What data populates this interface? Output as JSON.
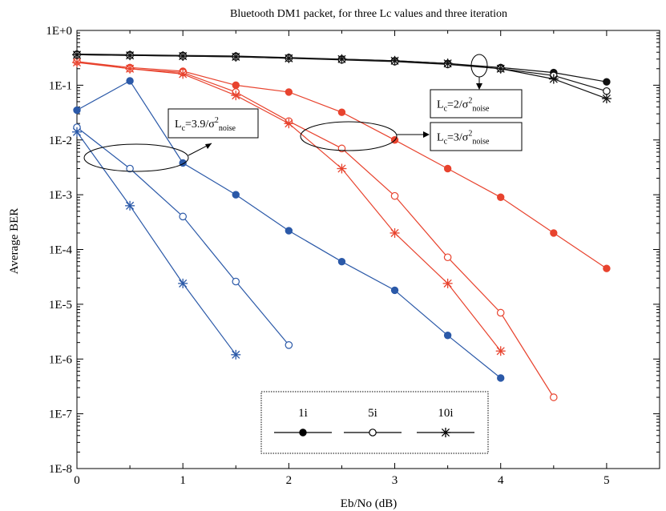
{
  "chart_data": {
    "type": "line",
    "title": "Bluetooth DM1 packet, for three Lc values and three iteration",
    "xlabel": "Eb/No (dB)",
    "ylabel": "Average BER",
    "xlim": [
      0,
      5.5
    ],
    "ylim": [
      1e-08,
      1
    ],
    "yscale": "log",
    "grid": false,
    "x_ticks": [
      "0",
      "1",
      "2",
      "3",
      "4",
      "5"
    ],
    "y_ticks": [
      "1E+0",
      "1E-1",
      "1E-2",
      "1E-3",
      "1E-4",
      "1E-5",
      "1E-6",
      "1E-7",
      "1E-8"
    ],
    "legend": {
      "placement": "bottom-center",
      "entries": [
        {
          "label": "1i",
          "marker": "filled-circle"
        },
        {
          "label": "5i",
          "marker": "open-circle"
        },
        {
          "label": "10i",
          "marker": "asterisk"
        }
      ]
    },
    "annotations": [
      {
        "text": "Lc=3.9/σ²noise",
        "main": "L",
        "sub1": "c",
        "mid": "=3.9/σ",
        "sup": "2",
        "sub2": "noise",
        "group": "blue"
      },
      {
        "text": "Lc=3/σ²noise",
        "main": "L",
        "sub1": "c",
        "mid": "=3/σ",
        "sup": "2",
        "sub2": "noise",
        "group": "red"
      },
      {
        "text": "Lc=2/σ²noise",
        "main": "L",
        "sub1": "c",
        "mid": "=2/σ",
        "sup": "2",
        "sub2": "noise",
        "group": "black"
      }
    ],
    "colors": {
      "blue": "#2b59a8",
      "red": "#e8432e",
      "black": "#111111"
    },
    "series": [
      {
        "group": "blue",
        "marker": "filled-circle",
        "x": [
          0,
          0.5,
          1,
          1.5,
          2,
          2.5,
          3,
          3.5,
          4
        ],
        "y": [
          0.035,
          0.12,
          0.0038,
          0.001,
          0.00022,
          6e-05,
          1.8e-05,
          2.7e-06,
          4.5e-07
        ]
      },
      {
        "group": "blue",
        "marker": "open-circle",
        "x": [
          0,
          0.5,
          1,
          1.5,
          2
        ],
        "y": [
          0.017,
          0.003,
          0.0004,
          2.6e-05,
          1.8e-06
        ]
      },
      {
        "group": "blue",
        "marker": "asterisk",
        "x": [
          0,
          0.5,
          1,
          1.5
        ],
        "y": [
          0.014,
          0.00063,
          2.4e-05,
          1.2e-06
        ]
      },
      {
        "group": "red",
        "marker": "filled-circle",
        "x": [
          0,
          0.5,
          1,
          1.5,
          2,
          2.5,
          3,
          3.5,
          4,
          4.5,
          5
        ],
        "y": [
          0.27,
          0.21,
          0.18,
          0.1,
          0.075,
          0.032,
          0.01,
          0.003,
          0.0009,
          0.0002,
          4.5e-05
        ]
      },
      {
        "group": "red",
        "marker": "open-circle",
        "x": [
          0,
          0.5,
          1,
          1.5,
          2,
          2.5,
          3,
          3.5,
          4,
          4.5
        ],
        "y": [
          0.27,
          0.2,
          0.17,
          0.075,
          0.022,
          0.007,
          0.00095,
          7.2e-05,
          7e-06,
          2e-07
        ]
      },
      {
        "group": "red",
        "marker": "asterisk",
        "x": [
          0,
          0.5,
          1,
          1.5,
          2,
          2.5,
          3,
          3.5,
          4
        ],
        "y": [
          0.26,
          0.2,
          0.16,
          0.065,
          0.02,
          0.003,
          0.0002,
          2.4e-05,
          1.4e-06
        ]
      },
      {
        "group": "black",
        "marker": "filled-circle",
        "x": [
          0,
          0.5,
          1,
          1.5,
          2,
          2.5,
          3,
          3.5,
          4,
          4.5,
          5
        ],
        "y": [
          0.37,
          0.36,
          0.35,
          0.34,
          0.32,
          0.3,
          0.28,
          0.25,
          0.21,
          0.17,
          0.115
        ]
      },
      {
        "group": "black",
        "marker": "open-circle",
        "x": [
          0,
          0.5,
          1,
          1.5,
          2,
          2.5,
          3,
          3.5,
          4,
          4.5,
          5
        ],
        "y": [
          0.36,
          0.35,
          0.34,
          0.33,
          0.31,
          0.29,
          0.27,
          0.24,
          0.2,
          0.15,
          0.078
        ]
      },
      {
        "group": "black",
        "marker": "asterisk",
        "x": [
          0,
          0.5,
          1,
          1.5,
          2,
          2.5,
          3,
          3.5,
          4,
          4.5,
          5
        ],
        "y": [
          0.36,
          0.35,
          0.34,
          0.33,
          0.31,
          0.3,
          0.28,
          0.25,
          0.2,
          0.13,
          0.057
        ]
      }
    ]
  }
}
